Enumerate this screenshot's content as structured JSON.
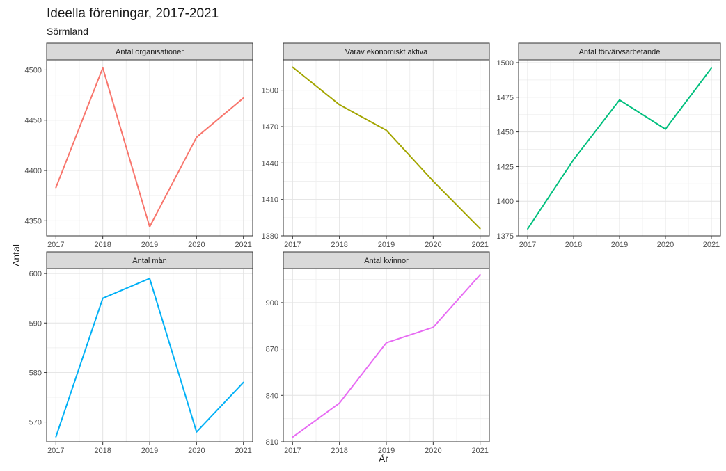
{
  "title": "Ideella föreningar, 2017-2021",
  "subtitle": "Sörmland",
  "ylabel": "Antal",
  "xlabel": "År",
  "chart_data": [
    {
      "type": "line",
      "title": "Antal organisationer",
      "x": [
        2017,
        2018,
        2019,
        2020,
        2021
      ],
      "values": [
        4383,
        4502,
        4344,
        4433,
        4472
      ],
      "ylim": [
        4335,
        4510
      ],
      "yticks": [
        4350,
        4400,
        4450,
        4500
      ],
      "color": "#F8766D"
    },
    {
      "type": "line",
      "title": "Varav ekonomiskt aktiva",
      "x": [
        2017,
        2018,
        2019,
        2020,
        2021
      ],
      "values": [
        1519,
        1488,
        1467,
        1425,
        1386
      ],
      "ylim": [
        1380,
        1525
      ],
      "yticks": [
        1380,
        1410,
        1440,
        1470,
        1500
      ],
      "color": "#A3A500"
    },
    {
      "type": "line",
      "title": "Antal förvärvsarbetande",
      "x": [
        2017,
        2018,
        2019,
        2020,
        2021
      ],
      "values": [
        1380,
        1430,
        1473,
        1452,
        1496
      ],
      "ylim": [
        1375,
        1502
      ],
      "yticks": [
        1375,
        1400,
        1425,
        1450,
        1475,
        1500
      ],
      "color": "#00BF7D"
    },
    {
      "type": "line",
      "title": "Antal män",
      "x": [
        2017,
        2018,
        2019,
        2020,
        2021
      ],
      "values": [
        567,
        595,
        599,
        568,
        578
      ],
      "ylim": [
        566,
        601
      ],
      "yticks": [
        570,
        580,
        590,
        600
      ],
      "color": "#00B0F6"
    },
    {
      "type": "line",
      "title": "Antal kvinnor",
      "x": [
        2017,
        2018,
        2019,
        2020,
        2021
      ],
      "values": [
        813,
        835,
        874,
        884,
        918
      ],
      "ylim": [
        810,
        922
      ],
      "yticks": [
        810,
        840,
        870,
        900
      ],
      "color": "#E76BF3"
    }
  ]
}
